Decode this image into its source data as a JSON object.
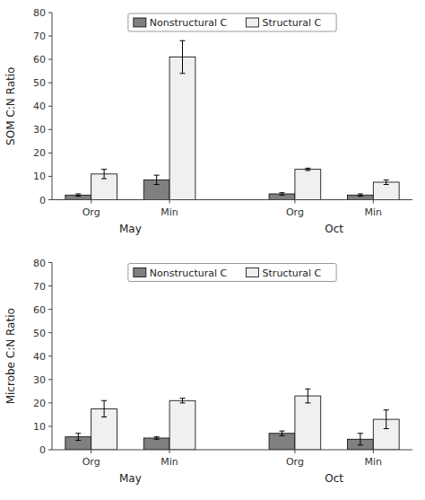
{
  "chart_data": [
    {
      "type": "bar",
      "ylabel": "SOM C:N Ratio",
      "categories": [
        "Org",
        "Min",
        "Org",
        "Min"
      ],
      "annotations": [
        "May",
        "Oct"
      ],
      "series": [
        {
          "name": "Nonstructural C",
          "color": "#808080",
          "values": [
            2.0,
            8.5,
            2.5,
            2.0
          ],
          "errors": [
            0.5,
            2.0,
            0.5,
            0.5
          ]
        },
        {
          "name": "Structural C",
          "color": "#f0f0f0",
          "values": [
            11.0,
            61.0,
            13.0,
            7.5
          ],
          "errors": [
            2.0,
            7.0,
            0.5,
            1.0
          ]
        }
      ],
      "ylim": [
        0,
        80
      ],
      "yticks": [
        0,
        10,
        20,
        30,
        40,
        50,
        60,
        70,
        80
      ],
      "grid": false,
      "legend": "upper center"
    },
    {
      "type": "bar",
      "ylabel": "Microbe C:N Ratio",
      "categories": [
        "Org",
        "Min",
        "Org",
        "Min"
      ],
      "annotations": [
        "May",
        "Oct"
      ],
      "series": [
        {
          "name": "Nonstructural C",
          "color": "#808080",
          "values": [
            5.5,
            5.0,
            7.0,
            4.5
          ],
          "errors": [
            1.5,
            0.5,
            1.0,
            2.5
          ]
        },
        {
          "name": "Structural C",
          "color": "#f0f0f0",
          "values": [
            17.5,
            21.0,
            23.0,
            13.0
          ],
          "errors": [
            3.5,
            1.0,
            3.0,
            4.0
          ]
        }
      ],
      "ylim": [
        0,
        80
      ],
      "yticks": [
        0,
        10,
        20,
        30,
        40,
        50,
        60,
        70,
        80
      ],
      "grid": false,
      "legend": "upper center"
    }
  ]
}
